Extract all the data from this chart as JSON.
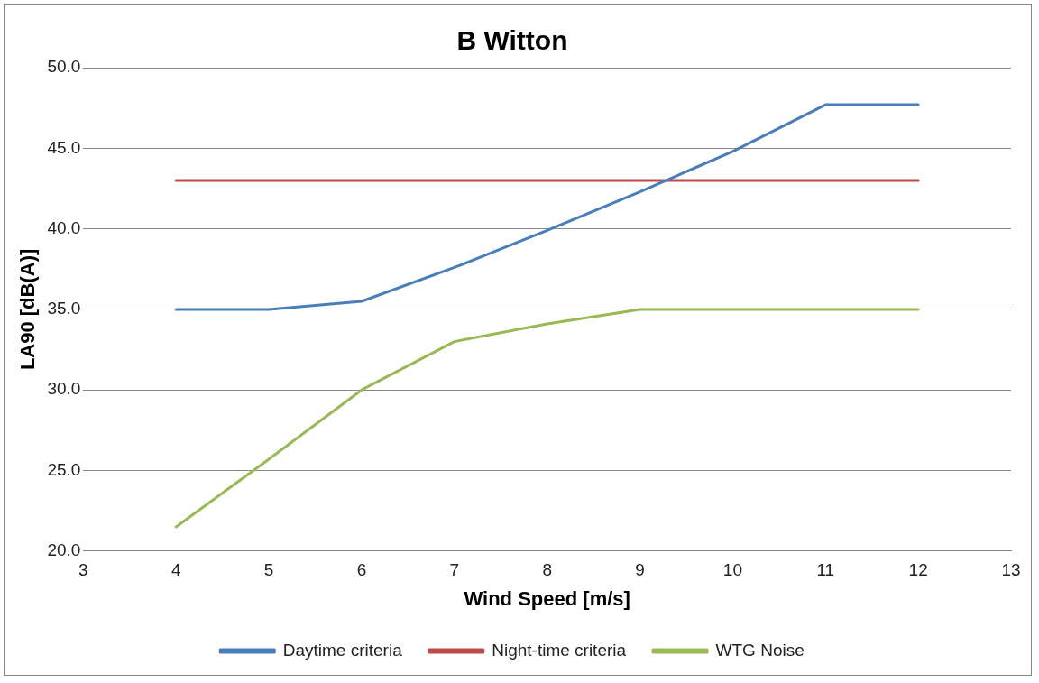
{
  "chart_data": {
    "type": "line",
    "title": "B Witton",
    "xlabel": "Wind Speed [m/s]",
    "ylabel": "LA90 [dB(A)]",
    "x": [
      4,
      5,
      6,
      7,
      8,
      9,
      10,
      11,
      12
    ],
    "series": [
      {
        "name": "Daytime criteria",
        "color": "#4a7ebb",
        "values": [
          35,
          35,
          35.5,
          37.6,
          39.9,
          42.3,
          44.8,
          47.7,
          47.7
        ]
      },
      {
        "name": "Night-time criteria",
        "color": "#be4b48",
        "values": [
          43,
          43,
          43,
          43,
          43,
          43,
          43,
          43,
          43
        ]
      },
      {
        "name": "WTG Noise",
        "color": "#98b954",
        "values": [
          21.5,
          25.7,
          30,
          33,
          34.1,
          35,
          35,
          35,
          35
        ]
      }
    ],
    "xlim": [
      3,
      13
    ],
    "xticks": [
      3,
      4,
      5,
      6,
      7,
      8,
      9,
      10,
      11,
      12,
      13
    ],
    "ylim": [
      20,
      50
    ],
    "yticks": [
      {
        "value": 20,
        "label": "20.0"
      },
      {
        "value": 25,
        "label": "25.0"
      },
      {
        "value": 30,
        "label": "30.0"
      },
      {
        "value": 35,
        "label": "35.0"
      },
      {
        "value": 40,
        "label": "40.0"
      },
      {
        "value": 45,
        "label": "45.0"
      },
      {
        "value": 50,
        "label": "50.0"
      }
    ],
    "grid": "y",
    "legend": "bottom",
    "marker": "none",
    "line_style": "solid"
  }
}
